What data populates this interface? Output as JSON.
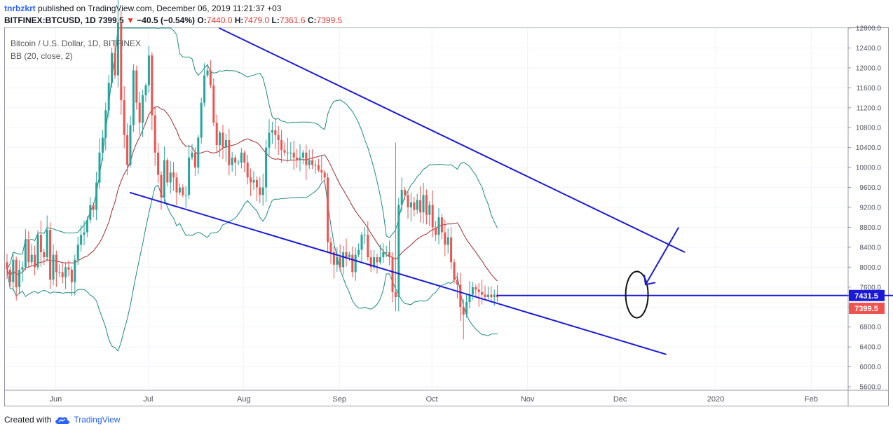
{
  "header": {
    "author": "tnrbzkrt",
    "published_text": "published on TradingView.com, December 06, 2019 11:21:37 +03",
    "symbol": "BITFINEX:BTCUSD, 1D",
    "last": "7399.5",
    "change": "−40.5 (−0.54%)",
    "o_label": "O:",
    "o_val": "7440.0",
    "h_label": "H:",
    "h_val": "7479.0",
    "l_label": "L:",
    "l_val": "7361.6",
    "c_label": "C:",
    "c_val": "7399.5"
  },
  "legend": {
    "pair": "Bitcoin / U.S. Dollar, 1D, BITFINEX",
    "indicator": "BB (20, close, 2)"
  },
  "footer": {
    "created_with": "Created with",
    "brand": "TradingView"
  },
  "colors": {
    "up": "#26a69a",
    "down": "#ef5350",
    "bb_basis": "#9b2c2c",
    "bb_band": "#1e8a80",
    "trendline": "#1a1ad6",
    "price_tag_blue": "#1a1ad6",
    "price_tag_red": "#ef5350"
  },
  "chart_data": {
    "type": "candlestick",
    "symbol": "BTCUSD",
    "exchange": "BITFINEX",
    "interval": "1D",
    "ylim": [
      5600,
      12800
    ],
    "y_ticks": [
      "12800.0",
      "12400.0",
      "12000.0",
      "11600.0",
      "11200.0",
      "10800.0",
      "10400.0",
      "10000.0",
      "9600.0",
      "9200.0",
      "8800.0",
      "8400.0",
      "8000.0",
      "7600.0",
      "7200.0",
      "6800.0",
      "6400.0",
      "6000.0",
      "5600.0"
    ],
    "x_ticks": [
      "Jun",
      "Jul",
      "Aug",
      "Sep",
      "Oct",
      "Nov",
      "Dec",
      "2020",
      "Feb"
    ],
    "key_levels": [
      {
        "label": "7431.5",
        "value": 7431.5
      },
      {
        "label": "7399.5",
        "value": 7399.5
      }
    ],
    "close_series_approx": [
      7950,
      7700,
      8150,
      7600,
      7950,
      8000,
      8550,
      8100,
      8250,
      8000,
      8650,
      8300,
      8200,
      8750,
      7750,
      8250,
      7900,
      7900,
      7800,
      8000,
      7950,
      7700,
      8150,
      8450,
      8650,
      8700,
      8950,
      9250,
      9150,
      9700,
      10300,
      10600,
      11150,
      11700,
      12300,
      11850,
      12900,
      11350,
      10650,
      10050,
      10850,
      11950,
      11300,
      10900,
      11450,
      11650,
      12250,
      11050,
      10300,
      9850,
      9400,
      10150,
      9700,
      9900,
      9800,
      9500,
      9600,
      9450,
      9450,
      10200,
      10300,
      10000,
      10600,
      11300,
      11850,
      11950,
      11650,
      10900,
      10450,
      10700,
      10400,
      10550,
      10050,
      10200,
      10100,
      10100,
      10300,
      10100,
      9800,
      9700,
      9750,
      9600,
      9450,
      9600,
      10400,
      10700,
      10750,
      10650,
      10550,
      10350,
      10300,
      10300,
      10300,
      10200,
      10150,
      10200,
      10300,
      10050,
      10150,
      10050,
      10050,
      9950,
      9900,
      9800,
      8500,
      8300,
      8050,
      8200,
      8000,
      8300,
      8200,
      8250,
      7900,
      8250,
      8350,
      8650,
      8650,
      8200,
      8000,
      8200,
      8100,
      8200,
      8300,
      8300,
      8200,
      7500,
      7400,
      9250,
      9550,
      9450,
      9200,
      9300,
      9150,
      9350,
      9100,
      9450,
      9050,
      9250,
      8800,
      8650,
      9000,
      8700,
      8450,
      8600,
      8100,
      7750,
      7650,
      7200,
      7050,
      7300,
      7450,
      7600,
      7550,
      7500,
      7450,
      7400,
      7450,
      7400,
      7450,
      7400
    ],
    "bollinger": {
      "period": 20,
      "source": "close",
      "stddev": 2
    },
    "trendlines": [
      {
        "name": "upper",
        "start": [
          "2019-07-24",
          12800
        ],
        "end": [
          "2019-12-22",
          8300
        ]
      },
      {
        "name": "lower",
        "start": [
          "2019-06-25",
          9500
        ],
        "end": [
          "2019-12-16",
          6250
        ]
      },
      {
        "name": "support",
        "start": [
          "2019-10-22",
          7431.5
        ],
        "end": [
          "2020-02-29",
          7431.5
        ]
      }
    ],
    "annotations": [
      {
        "type": "ellipse",
        "around": [
          "2019-12-06",
          7450
        ]
      },
      {
        "type": "arrow",
        "from": [
          "2019-12-20",
          8800
        ],
        "to": [
          "2019-12-07",
          7650
        ]
      }
    ]
  }
}
